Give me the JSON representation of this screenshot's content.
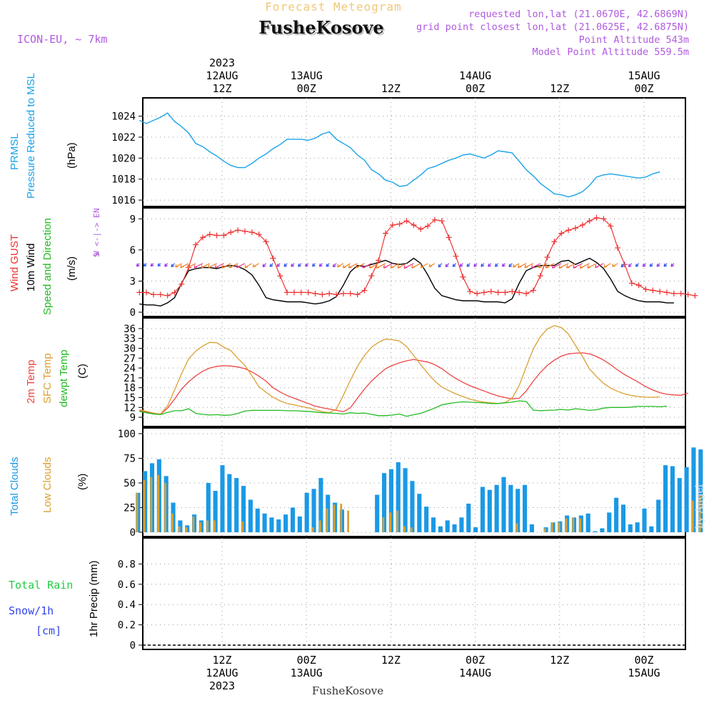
{
  "header": {
    "top_title": "Forecast Meteogram",
    "place": "FusheKosove",
    "model": "ICON-EU, ~ 7km",
    "info_lines": [
      "requested lon,lat (21.0670E, 42.6869N)",
      "grid point closest lon,lat (21.0625E, 42.6875N)",
      "Point Altitude 543m",
      "Model Point Altitude 559.5m"
    ],
    "footer_place": "FusheKosove",
    "watermark": "by Angel"
  },
  "colors": {
    "pressure": "#1aa3e8",
    "gust": "#ee3333",
    "wind": "#000000",
    "temp2m": "#ee4444",
    "sfc": "#d9a030",
    "dewpt": "#22bb22",
    "total_clouds": "#1a99e6",
    "low_clouds": "#d9a030",
    "purple": "#b05ae0",
    "rain": "#22cc44",
    "snow": "#3344ee"
  },
  "time_axis": {
    "top_labels": [
      {
        "h": 12,
        "lines": [
          "2023",
          "12AUG",
          "12Z"
        ]
      },
      {
        "h": 24,
        "lines": [
          "13AUG",
          "00Z"
        ]
      },
      {
        "h": 36,
        "lines": [
          "12Z"
        ]
      },
      {
        "h": 48,
        "lines": [
          "14AUG",
          "00Z"
        ]
      },
      {
        "h": 60,
        "lines": [
          "12Z"
        ]
      },
      {
        "h": 72,
        "lines": [
          "15AUG",
          "00Z"
        ]
      }
    ],
    "bottom_labels": [
      {
        "h": 12,
        "lines": [
          "12Z",
          "12AUG",
          "2023"
        ]
      },
      {
        "h": 24,
        "lines": [
          "00Z",
          "13AUG"
        ]
      },
      {
        "h": 36,
        "lines": [
          "12Z"
        ]
      },
      {
        "h": 48,
        "lines": [
          "00Z",
          "14AUG"
        ]
      },
      {
        "h": 60,
        "lines": [
          "12Z"
        ]
      },
      {
        "h": 72,
        "lines": [
          "00Z",
          "15AUG"
        ]
      }
    ]
  },
  "chart_data": [
    {
      "type": "line",
      "panel": "pressure",
      "ylabels": [
        "PRMSL",
        "Pressure Reduced to MSL",
        "(hPa)"
      ],
      "ylim": [
        1015.8,
        1025.2
      ],
      "yticks": [
        1016,
        1018,
        1020,
        1022,
        1024
      ],
      "x_hours_start": 0.25,
      "x_hours_step": 1,
      "series": [
        {
          "values": [
            1023.6,
            1023.3,
            1023.6,
            1023.9,
            1024.3,
            1023.5,
            1023.0,
            1022.4,
            1021.4,
            1021.1,
            1020.6,
            1020.2,
            1019.7,
            1019.3,
            1019.1,
            1019.1,
            1019.5,
            1020.0,
            1020.4,
            1020.9,
            1021.3,
            1021.8,
            1021.8,
            1021.8,
            1021.7,
            1021.9,
            1022.3,
            1022.5,
            1021.8,
            1021.4,
            1021.0,
            1020.3,
            1019.8,
            1018.9,
            1018.5,
            1017.9,
            1017.7,
            1017.3,
            1017.4,
            1017.9,
            1018.4,
            1019.0,
            1019.2,
            1019.5,
            1019.8,
            1020.0,
            1020.3,
            1020.4,
            1020.2,
            1020.0,
            1020.3,
            1020.7,
            1020.6,
            1020.5,
            1019.7,
            1018.9,
            1018.3,
            1017.6,
            1017.1,
            1016.6,
            1016.5,
            1016.3,
            1016.5,
            1016.8,
            1017.4,
            1018.2,
            1018.4,
            1018.5,
            1018.4,
            1018.3,
            1018.2,
            1018.1,
            1018.2,
            1018.5,
            1018.7
          ]
        }
      ]
    },
    {
      "type": "line",
      "panel": "wind",
      "ylabels": [
        "Wind GUST",
        "10m Wind",
        "Speed and Direction",
        "(m/s)"
      ],
      "compass": [
        "N",
        "W <-|-> E",
        "S"
      ],
      "ylim": [
        0,
        9.5
      ],
      "yticks": [
        0,
        3,
        6,
        9
      ],
      "x_hours_start": 0.25,
      "x_hours_step": 1,
      "series": [
        {
          "name": "Wind GUST",
          "values": [
            1.9,
            1.9,
            1.7,
            1.7,
            1.6,
            1.9,
            2.7,
            4.3,
            6.5,
            7.2,
            7.5,
            7.4,
            7.4,
            7.7,
            7.9,
            7.8,
            7.7,
            7.5,
            6.8,
            5.2,
            3.5,
            1.9,
            1.9,
            1.9,
            1.9,
            1.8,
            1.7,
            1.8,
            1.7,
            1.8,
            1.8,
            1.7,
            2.1,
            3.5,
            5.0,
            7.6,
            8.4,
            8.5,
            8.8,
            8.4,
            8.0,
            8.3,
            8.9,
            8.8,
            7.2,
            5.4,
            3.4,
            2.0,
            1.8,
            1.9,
            2.0,
            1.9,
            1.9,
            2.0,
            1.9,
            1.8,
            2.1,
            3.5,
            5.3,
            6.8,
            7.6,
            7.9,
            8.1,
            8.4,
            8.8,
            9.1,
            9.0,
            8.3,
            6.2,
            4.6,
            2.8,
            2.6,
            2.2,
            2.1,
            2.0,
            1.9,
            1.8,
            1.8,
            1.7,
            1.6
          ]
        },
        {
          "name": "10m Wind",
          "values": [
            0.8,
            0.7,
            0.7,
            0.6,
            0.9,
            1.4,
            2.8,
            4.0,
            4.2,
            4.3,
            4.3,
            4.2,
            4.4,
            4.5,
            4.4,
            4.1,
            3.6,
            2.6,
            1.4,
            1.2,
            1.1,
            1.0,
            1.0,
            1.0,
            0.9,
            0.8,
            0.9,
            1.1,
            1.5,
            2.6,
            3.9,
            4.5,
            4.4,
            4.6,
            4.8,
            5.0,
            4.7,
            4.6,
            4.7,
            5.2,
            4.7,
            3.6,
            2.3,
            1.6,
            1.4,
            1.2,
            1.1,
            1.1,
            1.1,
            1.0,
            1.0,
            1.0,
            0.9,
            1.3,
            2.8,
            4.0,
            4.3,
            4.5,
            4.5,
            4.5,
            4.9,
            5.0,
            4.6,
            4.9,
            5.2,
            4.8,
            4.2,
            3.2,
            2.0,
            1.6,
            1.3,
            1.1,
            1.0,
            1.0,
            1.0,
            0.9,
            0.9
          ]
        }
      ]
    },
    {
      "type": "line",
      "panel": "temperature",
      "ylabels": [
        "2m Temp",
        "SFC Temp",
        "dewpt Temp",
        "(C)"
      ],
      "ylim": [
        7.5,
        37.5
      ],
      "yticks": [
        9,
        12,
        15,
        18,
        21,
        24,
        27,
        30,
        33,
        36
      ],
      "x_hours_start": 0.25,
      "x_hours_step": 1,
      "series": [
        {
          "name": "2m Temp",
          "values": [
            11.0,
            10.6,
            10.2,
            9.9,
            11.8,
            14.5,
            17.6,
            19.8,
            21.6,
            23.0,
            24.0,
            24.5,
            24.7,
            24.6,
            24.3,
            23.8,
            22.8,
            21.5,
            20.0,
            18.0,
            16.7,
            15.6,
            14.8,
            14.0,
            13.2,
            12.4,
            11.9,
            11.5,
            11.1,
            10.7,
            11.9,
            14.8,
            17.6,
            20.0,
            22.0,
            23.8,
            24.8,
            25.6,
            26.2,
            26.6,
            26.2,
            25.8,
            25.0,
            23.8,
            22.2,
            20.8,
            19.6,
            18.6,
            17.8,
            17.0,
            16.2,
            15.5,
            15.0,
            14.6,
            14.8,
            17.0,
            20.0,
            22.6,
            24.8,
            26.4,
            27.6,
            28.3,
            28.5,
            28.6,
            28.3,
            27.5,
            26.4,
            25.0,
            23.4,
            22.0,
            20.8,
            19.6,
            18.3,
            17.3,
            16.5,
            16.0,
            15.8,
            15.7,
            16.4
          ]
        },
        {
          "name": "SFC Temp",
          "values": [
            11.3,
            10.8,
            10.3,
            10.0,
            12.5,
            17.3,
            22.3,
            26.8,
            29.1,
            30.7,
            31.8,
            31.7,
            30.3,
            29.3,
            26.9,
            24.8,
            21.6,
            18.3,
            16.6,
            15.1,
            14.0,
            13.2,
            12.8,
            12.3,
            11.9,
            11.3,
            10.7,
            10.4,
            11.5,
            15.7,
            20.3,
            24.5,
            27.8,
            30.3,
            31.8,
            32.8,
            32.6,
            32.2,
            30.5,
            27.8,
            25.0,
            22.4,
            20.0,
            18.2,
            17.1,
            16.1,
            15.3,
            14.5,
            14.0,
            13.6,
            13.4,
            13.2,
            13.5,
            14.8,
            18.7,
            24.3,
            29.8,
            33.5,
            35.9,
            36.9,
            36.3,
            34.3,
            30.9,
            27.5,
            23.7,
            21.4,
            19.3,
            17.9,
            16.9,
            16.1,
            15.6,
            15.3,
            15.1,
            15.1,
            15.2
          ]
        },
        {
          "name": "dewpt Temp",
          "values": [
            10.8,
            10.4,
            10.0,
            9.8,
            10.5,
            11.0,
            11.0,
            11.6,
            10.2,
            9.9,
            9.7,
            9.8,
            9.6,
            9.7,
            10.2,
            10.9,
            11.1,
            11.1,
            11.1,
            11.1,
            11.1,
            11.0,
            11.0,
            10.9,
            10.8,
            10.6,
            10.4,
            10.3,
            10.2,
            10.0,
            10.4,
            10.2,
            10.3,
            9.9,
            9.5,
            9.5,
            9.7,
            10.0,
            9.3,
            9.8,
            10.2,
            11.0,
            11.8,
            12.8,
            13.2,
            13.5,
            13.7,
            13.6,
            13.5,
            13.4,
            13.2,
            13.2,
            13.4,
            13.6,
            14.0,
            13.8,
            11.2,
            11.0,
            11.1,
            11.2,
            11.4,
            11.2,
            11.6,
            11.4,
            11.1,
            11.3,
            11.8,
            12.0,
            12.0,
            12.0,
            12.1,
            12.3,
            12.3,
            12.3,
            12.2,
            12.4
          ]
        }
      ]
    },
    {
      "type": "bar",
      "panel": "clouds",
      "ylabels": [
        "Total Clouds",
        "Low Clouds",
        "(%)"
      ],
      "ylim": [
        0,
        100
      ],
      "yticks": [
        0,
        25,
        50,
        75,
        100
      ],
      "x_hours_start": 0,
      "x_hours_step": 1,
      "series": [
        {
          "name": "Total Clouds",
          "values": [
            40,
            62,
            70,
            74,
            57,
            30,
            12,
            7,
            18,
            12,
            50,
            42,
            68,
            59,
            55,
            47,
            33,
            24,
            19,
            15,
            13,
            18,
            25,
            16,
            40,
            44,
            55,
            38,
            30,
            23,
            0,
            0,
            0,
            0,
            38,
            60,
            64,
            71,
            65,
            52,
            39,
            26,
            15,
            6,
            12,
            8,
            15,
            29,
            5,
            46,
            43,
            48,
            56,
            48,
            44,
            48,
            8,
            0,
            5,
            10,
            11,
            17,
            15,
            17,
            19,
            1,
            4,
            20,
            35,
            28,
            8,
            10,
            24,
            6,
            33,
            68,
            67,
            55,
            66,
            86,
            84
          ]
        },
        {
          "name": "Low Clouds",
          "values": [
            40,
            53,
            56,
            58,
            50,
            19,
            6,
            5,
            16,
            10,
            12,
            12,
            0,
            0,
            0,
            11,
            0,
            0,
            0,
            0,
            0,
            0,
            0,
            0,
            0,
            5,
            12,
            24,
            28,
            29,
            22,
            0,
            0,
            0,
            0,
            15,
            20,
            22,
            6,
            5,
            0,
            0,
            0,
            0,
            0,
            0,
            0,
            0,
            0,
            0,
            0,
            0,
            0,
            0,
            9,
            0,
            0,
            0,
            4,
            10,
            10,
            14,
            15,
            14,
            0,
            0,
            0,
            0,
            0,
            0,
            0,
            0,
            0,
            0,
            0,
            0,
            0,
            0,
            0,
            32,
            38
          ]
        }
      ]
    },
    {
      "type": "line",
      "panel": "precip",
      "ylabels": [
        "1hr Precip (mm)"
      ],
      "legend": [
        "Total  Rain",
        "Snow/1h",
        "[cm]"
      ],
      "ylim": [
        0,
        1.0
      ],
      "yticks": [
        0,
        0.2,
        0.4,
        0.6,
        0.8
      ],
      "series": [
        {
          "name": "Total Rain",
          "values": [
            0,
            0,
            0,
            0,
            0,
            0,
            0,
            0
          ]
        }
      ]
    }
  ]
}
